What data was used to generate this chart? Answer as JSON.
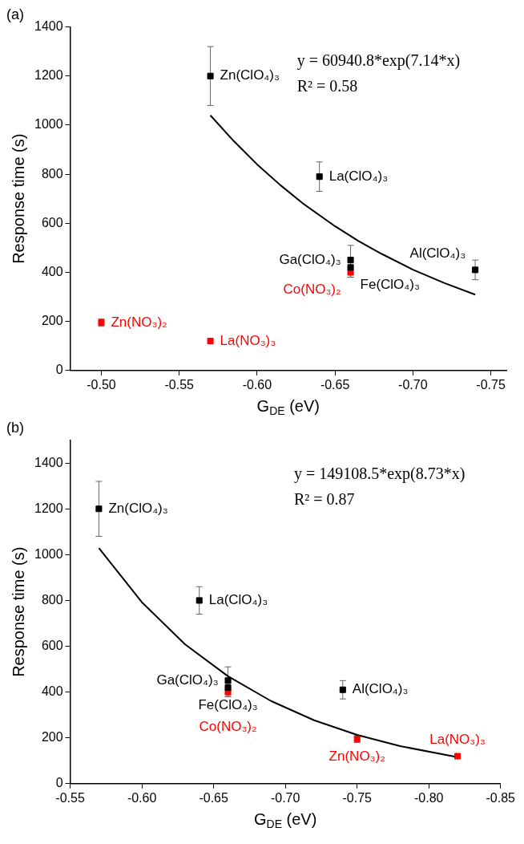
{
  "chart_data": [
    {
      "type": "scatter",
      "title": "(a)",
      "xlabel": "G$_{DE}$ (eV)",
      "ylabel": "Response time (s)",
      "xlim": [
        -0.48,
        -0.76
      ],
      "xticks": [
        {
          "value": -0.5,
          "label": "-0.50"
        },
        {
          "value": -0.55,
          "label": "-0.55"
        },
        {
          "value": -0.6,
          "label": "-0.60"
        },
        {
          "value": -0.65,
          "label": "-0.65"
        },
        {
          "value": -0.7,
          "label": "-0.70"
        },
        {
          "value": -0.75,
          "label": "-0.75"
        }
      ],
      "ylim": [
        0,
        1400
      ],
      "yticks": [
        0,
        200,
        400,
        600,
        800,
        1000,
        1200,
        1400
      ],
      "grid": false,
      "legend": false,
      "marker": "square",
      "series": [
        {
          "color": "#000000",
          "x": [
            -0.57,
            -0.64,
            -0.66,
            -0.66,
            -0.74
          ],
          "values": [
            1200,
            790,
            450,
            420,
            410
          ],
          "errors": [
            120,
            60,
            60,
            40,
            40
          ]
        },
        {
          "color": "#ff0000",
          "x": [
            -0.5,
            -0.57,
            -0.66
          ],
          "values": [
            195,
            120,
            400
          ],
          "errors": [
            15,
            null,
            20
          ]
        },
        {
          "type": "line",
          "color": "#000000",
          "marker": "none",
          "x": [
            -0.57,
            -0.585,
            -0.6,
            -0.615,
            -0.63,
            -0.65,
            -0.665,
            -0.68,
            -0.7,
            -0.72,
            -0.74
          ],
          "values": [
            1040,
            935,
            840,
            755,
            678,
            588,
            528,
            475,
            411,
            357,
            309
          ]
        }
      ],
      "annotations": [
        "y = 60940.8*exp(7.14*x)",
        "R² = 0.58",
        {
          "text": "Zn(ClO₄)₃",
          "x": -0.57,
          "y": 1200
        },
        {
          "text": "La(ClO₄)₃",
          "x": -0.64,
          "y": 790
        },
        {
          "text": "Ga(ClO₄)₃",
          "x": -0.66,
          "y": 450
        },
        {
          "text": "Fe(ClO₄)₃",
          "x": -0.66,
          "y": 420
        },
        {
          "text": "Al(ClO₄)₃",
          "x": -0.74,
          "y": 410
        },
        {
          "text": "Zn(NO₃)₂",
          "x": -0.5,
          "y": 195
        },
        {
          "text": "La(NO₃)₃",
          "x": -0.57,
          "y": 120
        },
        {
          "text": "Co(NO₃)₂",
          "x": -0.66,
          "y": 400
        }
      ]
    },
    {
      "type": "scatter",
      "title": "(b)",
      "xlabel": "G$_{DE}$ (eV)",
      "ylabel": "Response time (s)",
      "xlim": [
        -0.55,
        -0.85
      ],
      "xticks": [
        {
          "value": -0.55,
          "label": "-0.55"
        },
        {
          "value": -0.6,
          "label": "-0.60"
        },
        {
          "value": -0.65,
          "label": "-0.65"
        },
        {
          "value": -0.7,
          "label": "-0.70"
        },
        {
          "value": -0.75,
          "label": "-0.75"
        },
        {
          "value": -0.8,
          "label": "-0.80"
        },
        {
          "value": -0.85,
          "label": "-0.85"
        }
      ],
      "ylim": [
        0,
        1500
      ],
      "yticks": [
        0,
        200,
        400,
        600,
        800,
        1000,
        1200,
        1400
      ],
      "grid": false,
      "legend": false,
      "marker": "square",
      "series": [
        {
          "color": "#000000",
          "x": [
            -0.57,
            -0.64,
            -0.66,
            -0.66,
            -0.74
          ],
          "values": [
            1200,
            800,
            450,
            420,
            410
          ],
          "errors": [
            120,
            60,
            60,
            40,
            40
          ]
        },
        {
          "color": "#ff0000",
          "x": [
            -0.66,
            -0.75,
            -0.82
          ],
          "values": [
            400,
            195,
            120
          ],
          "errors": [
            20,
            15,
            null
          ]
        },
        {
          "type": "line",
          "color": "#000000",
          "marker": "none",
          "x": [
            -0.57,
            -0.6,
            -0.63,
            -0.66,
            -0.69,
            -0.72,
            -0.75,
            -0.78,
            -0.82
          ],
          "values": [
            1029,
            792,
            609,
            469,
            361,
            277,
            213,
            164,
            116
          ]
        }
      ],
      "annotations": [
        "y = 149108.5*exp(8.73*x)",
        "R² = 0.87",
        {
          "text": "Zn(ClO₄)₃",
          "x": -0.57,
          "y": 1200
        },
        {
          "text": "La(ClO₄)₃",
          "x": -0.64,
          "y": 800
        },
        {
          "text": "Ga(ClO₄)₃",
          "x": -0.66,
          "y": 450
        },
        {
          "text": "Fe(ClO₄)₃",
          "x": -0.66,
          "y": 420
        },
        {
          "text": "Al(ClO₄)₃",
          "x": -0.74,
          "y": 410
        },
        {
          "text": "Co(NO₃)₂",
          "x": -0.66,
          "y": 400
        },
        {
          "text": "Zn(NO₃)₂",
          "x": -0.75,
          "y": 195
        },
        {
          "text": "La(NO₃)₃",
          "x": -0.82,
          "y": 120
        }
      ]
    }
  ]
}
